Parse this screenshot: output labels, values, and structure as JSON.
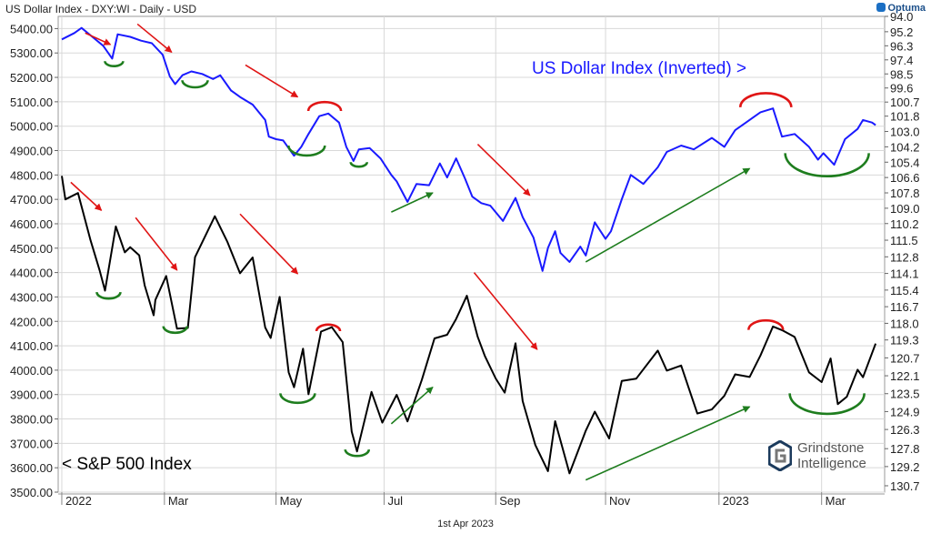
{
  "header": {
    "title": "US Dollar Index - DXY:WI - Daily - USD",
    "brand": "Optuma"
  },
  "footer": {
    "date": "1st Apr 2023"
  },
  "watermark": {
    "line1": "Grindstone",
    "line2": "Intelligence"
  },
  "colors": {
    "sp500": "#000000",
    "dxy": "#1a1aff",
    "down_arrow": "#e01515",
    "up_arrow": "#1e7d1e",
    "trough": "#1e7d1e",
    "peak": "#e01515",
    "grid": "#d8d8d8"
  },
  "chart_data": {
    "type": "line",
    "x_axis": {
      "start": "2022-01-01",
      "end": "2023-04-05",
      "tick_labels": [
        {
          "label": "2022",
          "date": "2022-01-03"
        },
        {
          "label": "Mar",
          "date": "2022-03-01"
        },
        {
          "label": "May",
          "date": "2022-05-02"
        },
        {
          "label": "Jul",
          "date": "2022-07-01"
        },
        {
          "label": "Sep",
          "date": "2022-09-01"
        },
        {
          "label": "Nov",
          "date": "2022-11-01"
        },
        {
          "label": "2023",
          "date": "2023-01-03"
        },
        {
          "label": "Mar",
          "date": "2023-03-01"
        }
      ]
    },
    "left_axis": {
      "range": [
        3500,
        5450
      ],
      "tick_labels": [
        "5400.00",
        "5300.00",
        "5200.00",
        "5100.00",
        "5000.00",
        "4900.00",
        "4800.00",
        "4700.00",
        "4600.00",
        "4500.00",
        "4400.00",
        "4300.00",
        "4200.00",
        "4100.00",
        "4000.00",
        "3900.00",
        "3800.00",
        "3700.00",
        "3600.00",
        "3500.00"
      ]
    },
    "right_axis": {
      "range": [
        131.2,
        94.0
      ],
      "inverted": true,
      "tick_labels": [
        "94.0",
        "95.2",
        "96.3",
        "97.4",
        "98.5",
        "99.6",
        "100.7",
        "101.8",
        "103.0",
        "104.2",
        "105.4",
        "106.6",
        "107.8",
        "109.0",
        "110.2",
        "111.5",
        "112.8",
        "114.1",
        "115.4",
        "116.7",
        "118.0",
        "119.3",
        "120.7",
        "122.1",
        "123.5",
        "124.9",
        "126.3",
        "127.8",
        "129.2",
        "130.7"
      ]
    },
    "grid": true,
    "series": [
      {
        "name": "US Dollar Index (Inverted) >",
        "axis": "right",
        "label_text": "US Dollar Index (Inverted) >",
        "points": [
          [
            "2022-01-03",
            95.8
          ],
          [
            "2022-01-10",
            95.3
          ],
          [
            "2022-01-14",
            94.9
          ],
          [
            "2022-01-20",
            95.6
          ],
          [
            "2022-01-26",
            96.3
          ],
          [
            "2022-01-31",
            97.3
          ],
          [
            "2022-02-03",
            95.4
          ],
          [
            "2022-02-10",
            95.6
          ],
          [
            "2022-02-16",
            95.9
          ],
          [
            "2022-02-22",
            96.1
          ],
          [
            "2022-02-28",
            97.0
          ],
          [
            "2022-03-04",
            98.7
          ],
          [
            "2022-03-07",
            99.3
          ],
          [
            "2022-03-11",
            98.6
          ],
          [
            "2022-03-16",
            98.3
          ],
          [
            "2022-03-22",
            98.5
          ],
          [
            "2022-03-28",
            98.9
          ],
          [
            "2022-04-01",
            98.6
          ],
          [
            "2022-04-07",
            99.8
          ],
          [
            "2022-04-12",
            100.3
          ],
          [
            "2022-04-19",
            100.9
          ],
          [
            "2022-04-26",
            102.1
          ],
          [
            "2022-04-28",
            103.4
          ],
          [
            "2022-05-02",
            103.6
          ],
          [
            "2022-05-06",
            103.7
          ],
          [
            "2022-05-12",
            104.9
          ],
          [
            "2022-05-16",
            104.2
          ],
          [
            "2022-05-20",
            103.2
          ],
          [
            "2022-05-26",
            101.8
          ],
          [
            "2022-05-31",
            101.6
          ],
          [
            "2022-06-06",
            102.3
          ],
          [
            "2022-06-10",
            104.2
          ],
          [
            "2022-06-14",
            105.3
          ],
          [
            "2022-06-17",
            104.4
          ],
          [
            "2022-06-23",
            104.3
          ],
          [
            "2022-06-29",
            105.1
          ],
          [
            "2022-07-05",
            106.4
          ],
          [
            "2022-07-08",
            106.9
          ],
          [
            "2022-07-14",
            108.5
          ],
          [
            "2022-07-19",
            107.1
          ],
          [
            "2022-07-26",
            107.2
          ],
          [
            "2022-08-01",
            105.5
          ],
          [
            "2022-08-05",
            106.6
          ],
          [
            "2022-08-10",
            105.1
          ],
          [
            "2022-08-15",
            106.7
          ],
          [
            "2022-08-19",
            108.1
          ],
          [
            "2022-08-24",
            108.6
          ],
          [
            "2022-08-29",
            108.8
          ],
          [
            "2022-09-05",
            110.0
          ],
          [
            "2022-09-12",
            108.2
          ],
          [
            "2022-09-16",
            109.7
          ],
          [
            "2022-09-22",
            111.3
          ],
          [
            "2022-09-27",
            113.9
          ],
          [
            "2022-09-30",
            112.1
          ],
          [
            "2022-10-04",
            110.8
          ],
          [
            "2022-10-07",
            112.5
          ],
          [
            "2022-10-12",
            113.2
          ],
          [
            "2022-10-18",
            112.0
          ],
          [
            "2022-10-21",
            112.7
          ],
          [
            "2022-10-26",
            110.1
          ],
          [
            "2022-11-01",
            111.4
          ],
          [
            "2022-11-04",
            110.8
          ],
          [
            "2022-11-10",
            108.3
          ],
          [
            "2022-11-15",
            106.4
          ],
          [
            "2022-11-22",
            107.1
          ],
          [
            "2022-11-30",
            105.8
          ],
          [
            "2022-12-05",
            104.6
          ],
          [
            "2022-12-13",
            104.1
          ],
          [
            "2022-12-20",
            104.4
          ],
          [
            "2022-12-30",
            103.5
          ],
          [
            "2023-01-06",
            104.2
          ],
          [
            "2023-01-12",
            102.9
          ],
          [
            "2023-01-18",
            102.3
          ],
          [
            "2023-01-26",
            101.5
          ],
          [
            "2023-02-02",
            101.2
          ],
          [
            "2023-02-07",
            103.4
          ],
          [
            "2023-02-14",
            103.2
          ],
          [
            "2023-02-22",
            104.2
          ],
          [
            "2023-02-27",
            105.2
          ],
          [
            "2023-03-02",
            104.7
          ],
          [
            "2023-03-08",
            105.6
          ],
          [
            "2023-03-14",
            103.6
          ],
          [
            "2023-03-21",
            102.8
          ],
          [
            "2023-03-24",
            102.1
          ],
          [
            "2023-03-29",
            102.3
          ],
          [
            "2023-03-31",
            102.5
          ]
        ]
      },
      {
        "name": "< S&P 500 Index",
        "axis": "left",
        "label_text": "< S&P 500 Index",
        "points": [
          [
            "2022-01-03",
            4796
          ],
          [
            "2022-01-05",
            4700
          ],
          [
            "2022-01-12",
            4726
          ],
          [
            "2022-01-19",
            4532
          ],
          [
            "2022-01-24",
            4410
          ],
          [
            "2022-01-27",
            4326
          ],
          [
            "2022-02-02",
            4589
          ],
          [
            "2022-02-07",
            4483
          ],
          [
            "2022-02-10",
            4504
          ],
          [
            "2022-02-15",
            4471
          ],
          [
            "2022-02-18",
            4348
          ],
          [
            "2022-02-23",
            4225
          ],
          [
            "2022-02-24",
            4288
          ],
          [
            "2022-03-02",
            4386
          ],
          [
            "2022-03-08",
            4170
          ],
          [
            "2022-03-14",
            4173
          ],
          [
            "2022-03-18",
            4463
          ],
          [
            "2022-03-29",
            4631
          ],
          [
            "2022-04-05",
            4525
          ],
          [
            "2022-04-12",
            4397
          ],
          [
            "2022-04-19",
            4462
          ],
          [
            "2022-04-26",
            4175
          ],
          [
            "2022-04-29",
            4132
          ],
          [
            "2022-05-04",
            4300
          ],
          [
            "2022-05-09",
            3991
          ],
          [
            "2022-05-12",
            3930
          ],
          [
            "2022-05-17",
            4088
          ],
          [
            "2022-05-20",
            3901
          ],
          [
            "2022-05-27",
            4158
          ],
          [
            "2022-06-02",
            4176
          ],
          [
            "2022-06-08",
            4115
          ],
          [
            "2022-06-13",
            3749
          ],
          [
            "2022-06-16",
            3667
          ],
          [
            "2022-06-24",
            3911
          ],
          [
            "2022-06-30",
            3785
          ],
          [
            "2022-07-08",
            3899
          ],
          [
            "2022-07-14",
            3790
          ],
          [
            "2022-07-22",
            3961
          ],
          [
            "2022-07-29",
            4130
          ],
          [
            "2022-08-05",
            4145
          ],
          [
            "2022-08-10",
            4210
          ],
          [
            "2022-08-16",
            4305
          ],
          [
            "2022-08-22",
            4137
          ],
          [
            "2022-08-26",
            4057
          ],
          [
            "2022-09-01",
            3966
          ],
          [
            "2022-09-06",
            3908
          ],
          [
            "2022-09-12",
            4110
          ],
          [
            "2022-09-16",
            3873
          ],
          [
            "2022-09-23",
            3693
          ],
          [
            "2022-09-30",
            3586
          ],
          [
            "2022-10-04",
            3791
          ],
          [
            "2022-10-12",
            3577
          ],
          [
            "2022-10-21",
            3752
          ],
          [
            "2022-10-26",
            3830
          ],
          [
            "2022-11-03",
            3720
          ],
          [
            "2022-11-10",
            3956
          ],
          [
            "2022-11-18",
            3965
          ],
          [
            "2022-11-30",
            4080
          ],
          [
            "2022-12-05",
            3998
          ],
          [
            "2022-12-13",
            4019
          ],
          [
            "2022-12-22",
            3822
          ],
          [
            "2022-12-30",
            3839
          ],
          [
            "2023-01-06",
            3895
          ],
          [
            "2023-01-12",
            3983
          ],
          [
            "2023-01-20",
            3972
          ],
          [
            "2023-01-26",
            4060
          ],
          [
            "2023-02-02",
            4179
          ],
          [
            "2023-02-07",
            4164
          ],
          [
            "2023-02-14",
            4136
          ],
          [
            "2023-02-22",
            3991
          ],
          [
            "2023-03-01",
            3951
          ],
          [
            "2023-03-06",
            4048
          ],
          [
            "2023-03-10",
            3861
          ],
          [
            "2023-03-15",
            3891
          ],
          [
            "2023-03-21",
            4002
          ],
          [
            "2023-03-24",
            3971
          ],
          [
            "2023-03-31",
            4109
          ]
        ]
      }
    ],
    "annotations": {
      "down_arrows": [
        {
          "series": "dxy",
          "from": [
            "2022-01-16",
            95.3
          ],
          "to": [
            "2022-01-30",
            96.2
          ]
        },
        {
          "series": "dxy",
          "from": [
            "2022-02-14",
            94.6
          ],
          "to": [
            "2022-03-05",
            96.8
          ]
        },
        {
          "series": "dxy",
          "from": [
            "2022-04-15",
            97.8
          ],
          "to": [
            "2022-05-14",
            100.3
          ]
        },
        {
          "series": "dxy",
          "from": [
            "2022-08-22",
            104.0
          ],
          "to": [
            "2022-09-20",
            108.0
          ]
        },
        {
          "series": "spx",
          "from": [
            "2022-01-08",
            4770
          ],
          "to": [
            "2022-01-25",
            4655
          ]
        },
        {
          "series": "spx",
          "from": [
            "2022-02-13",
            4625
          ],
          "to": [
            "2022-03-08",
            4410
          ]
        },
        {
          "series": "spx",
          "from": [
            "2022-04-12",
            4640
          ],
          "to": [
            "2022-05-14",
            4395
          ]
        },
        {
          "series": "spx",
          "from": [
            "2022-08-20",
            4400
          ],
          "to": [
            "2022-09-24",
            4085
          ]
        }
      ],
      "up_arrows": [
        {
          "series": "dxy",
          "from": [
            "2022-07-05",
            109.3
          ],
          "to": [
            "2022-07-28",
            107.8
          ]
        },
        {
          "series": "dxy",
          "from": [
            "2022-10-21",
            113.2
          ],
          "to": [
            "2023-01-20",
            105.9
          ]
        },
        {
          "series": "spx",
          "from": [
            "2022-07-05",
            3780
          ],
          "to": [
            "2022-07-28",
            3930
          ]
        },
        {
          "series": "spx",
          "from": [
            "2022-10-21",
            3550
          ],
          "to": [
            "2023-01-20",
            3850
          ]
        }
      ],
      "troughs": [
        {
          "series": "dxy",
          "center": [
            "2022-02-01",
            97.5
          ],
          "r": 10
        },
        {
          "series": "dxy",
          "center": [
            "2022-03-18",
            99.0
          ],
          "r": 14
        },
        {
          "series": "dxy",
          "center": [
            "2022-05-19",
            104.1
          ],
          "r": 20
        },
        {
          "series": "dxy",
          "center": [
            "2022-06-17",
            105.4
          ],
          "r": 9
        },
        {
          "series": "dxy",
          "center": [
            "2023-03-04",
            104.7
          ],
          "r": 46
        },
        {
          "series": "spx",
          "center": [
            "2022-01-29",
            4320
          ],
          "r": 13
        },
        {
          "series": "spx",
          "center": [
            "2022-03-07",
            4180
          ],
          "r": 13
        },
        {
          "series": "spx",
          "center": [
            "2022-05-14",
            3905
          ],
          "r": 19
        },
        {
          "series": "spx",
          "center": [
            "2022-06-16",
            3675
          ],
          "r": 13
        },
        {
          "series": "spx",
          "center": [
            "2023-03-04",
            3905
          ],
          "r": 41
        }
      ],
      "peaks": [
        {
          "series": "dxy",
          "center": [
            "2022-05-29",
            101.4
          ],
          "r": 18
        },
        {
          "series": "dxy",
          "center": [
            "2023-01-29",
            101.1
          ],
          "r": 28
        },
        {
          "series": "spx",
          "center": [
            "2022-05-31",
            4160
          ],
          "r": 13
        },
        {
          "series": "spx",
          "center": [
            "2023-01-29",
            4165
          ],
          "r": 19
        }
      ]
    }
  }
}
